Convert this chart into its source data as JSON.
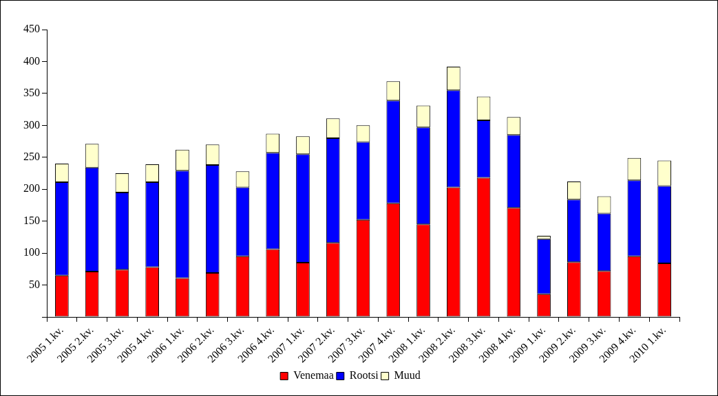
{
  "chart_data": {
    "type": "bar",
    "stacked": true,
    "categories": [
      "2005 1.kv.",
      "2005 2.kv.",
      "2005 3.kv.",
      "2005 4.kv.",
      "2006 1.kv.",
      "2006 2.kv.",
      "2006 3.kv.",
      "2006 4.kv.",
      "2007 1.kv.",
      "2007 2.kv.",
      "2007 3.kv.",
      "2007 4.kv.",
      "2008 1.kv.",
      "2008 2.kv.",
      "2008 3.kv.",
      "2008 4.kv.",
      "2009 1.kv.",
      "2009 2.kv.",
      "2009 3.kv.",
      "2009 4.kv.",
      "2010 1.kv."
    ],
    "series": [
      {
        "name": "Venemaa",
        "color": "#ff0000",
        "values": [
          65,
          71,
          74,
          78,
          61,
          69,
          95,
          106,
          85,
          116,
          152,
          178,
          145,
          203,
          218,
          171,
          36,
          86,
          72,
          95,
          84
        ]
      },
      {
        "name": "Rootsi",
        "color": "#0000ff",
        "values": [
          146,
          163,
          121,
          133,
          168,
          169,
          108,
          151,
          170,
          164,
          122,
          161,
          152,
          152,
          90,
          114,
          86,
          98,
          90,
          119,
          121
        ]
      },
      {
        "name": "Muud",
        "color": "#ffffcc",
        "values": [
          29,
          37,
          30,
          28,
          33,
          32,
          25,
          30,
          28,
          31,
          26,
          30,
          34,
          37,
          37,
          28,
          5,
          28,
          27,
          35,
          40
        ]
      }
    ],
    "ylim": [
      0,
      450
    ],
    "yticks": [
      {
        "value": 0,
        "label": null
      },
      50,
      100,
      150,
      200,
      250,
      300,
      350,
      400,
      450
    ],
    "grid": false,
    "legend": "bottom"
  }
}
